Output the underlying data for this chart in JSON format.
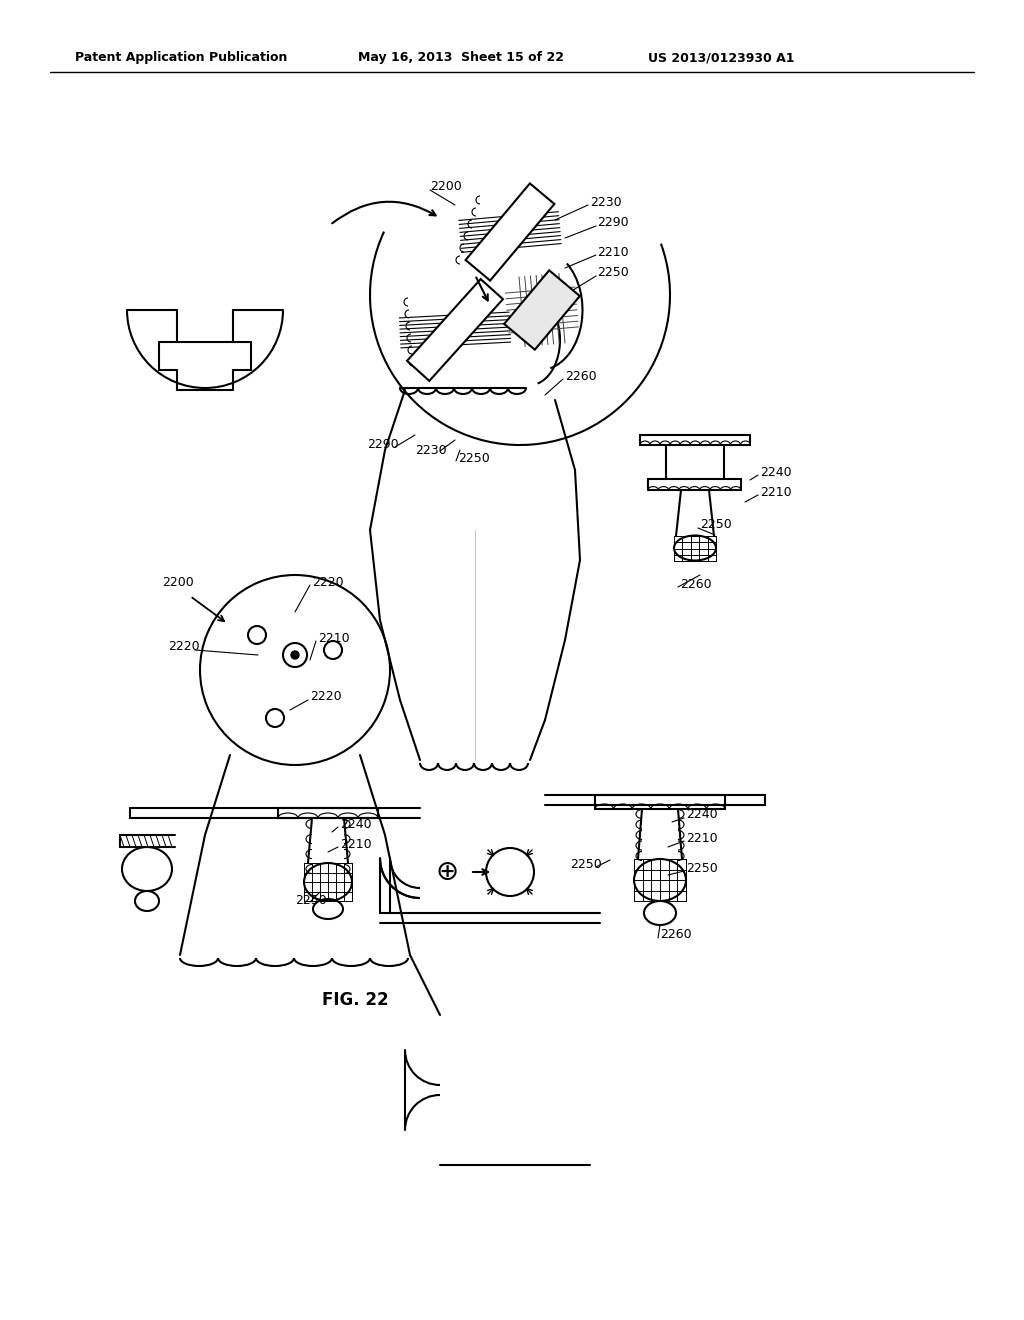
{
  "bg_color": "#ffffff",
  "line_color": "#000000",
  "header_left": "Patent Application Publication",
  "header_mid": "May 16, 2013  Sheet 15 of 22",
  "header_right": "US 2013/0123930 A1",
  "fig_label": "FIG. 22",
  "lw": 1.5
}
